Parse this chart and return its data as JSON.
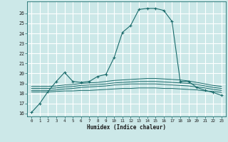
{
  "xlabel": "Humidex (Indice chaleur)",
  "bg_color": "#cce8e8",
  "grid_color": "#ffffff",
  "line_color": "#1a6b6b",
  "xlim": [
    -0.5,
    23.5
  ],
  "ylim": [
    15.7,
    27.2
  ],
  "yticks": [
    16,
    17,
    18,
    19,
    20,
    21,
    22,
    23,
    24,
    25,
    26
  ],
  "xticks": [
    0,
    1,
    2,
    3,
    4,
    5,
    6,
    7,
    8,
    9,
    10,
    11,
    12,
    13,
    14,
    15,
    16,
    17,
    18,
    19,
    20,
    21,
    22,
    23
  ],
  "series": [
    {
      "x": [
        0,
        1,
        2,
        3,
        4,
        5,
        6,
        7,
        8,
        9,
        10,
        11,
        12,
        13,
        14,
        15,
        16,
        17,
        18,
        19,
        20,
        21,
        22,
        23
      ],
      "y": [
        16.1,
        17.0,
        18.2,
        19.2,
        20.1,
        19.2,
        19.1,
        19.2,
        19.7,
        19.9,
        21.6,
        24.1,
        24.8,
        26.4,
        26.5,
        26.5,
        26.3,
        25.2,
        19.2,
        19.2,
        18.6,
        18.3,
        18.1,
        17.8
      ],
      "marker": true
    },
    {
      "x": [
        0,
        1,
        2,
        3,
        4,
        5,
        6,
        7,
        8,
        9,
        10,
        11,
        12,
        13,
        14,
        15,
        16,
        17,
        18,
        19,
        20,
        21,
        22,
        23
      ],
      "y": [
        18.15,
        18.15,
        18.15,
        18.2,
        18.25,
        18.25,
        18.3,
        18.3,
        18.35,
        18.4,
        18.45,
        18.5,
        18.5,
        18.55,
        18.55,
        18.55,
        18.5,
        18.5,
        18.45,
        18.4,
        18.35,
        18.25,
        18.2,
        18.1
      ],
      "marker": false
    },
    {
      "x": [
        0,
        1,
        2,
        3,
        4,
        5,
        6,
        7,
        8,
        9,
        10,
        11,
        12,
        13,
        14,
        15,
        16,
        17,
        18,
        19,
        20,
        21,
        22,
        23
      ],
      "y": [
        18.3,
        18.3,
        18.3,
        18.35,
        18.45,
        18.5,
        18.6,
        18.65,
        18.7,
        18.75,
        18.85,
        18.9,
        18.95,
        18.95,
        18.95,
        18.95,
        18.9,
        18.85,
        18.8,
        18.75,
        18.65,
        18.55,
        18.4,
        18.3
      ],
      "marker": false
    },
    {
      "x": [
        0,
        1,
        2,
        3,
        4,
        5,
        6,
        7,
        8,
        9,
        10,
        11,
        12,
        13,
        14,
        15,
        16,
        17,
        18,
        19,
        20,
        21,
        22,
        23
      ],
      "y": [
        18.5,
        18.5,
        18.5,
        18.55,
        18.65,
        18.7,
        18.8,
        18.85,
        18.9,
        18.95,
        19.05,
        19.1,
        19.15,
        19.2,
        19.2,
        19.2,
        19.15,
        19.1,
        19.05,
        19.0,
        18.9,
        18.75,
        18.6,
        18.5
      ],
      "marker": false
    },
    {
      "x": [
        0,
        1,
        2,
        3,
        4,
        5,
        6,
        7,
        8,
        9,
        10,
        11,
        12,
        13,
        14,
        15,
        16,
        17,
        18,
        19,
        20,
        21,
        22,
        23
      ],
      "y": [
        18.7,
        18.7,
        18.7,
        18.75,
        18.85,
        18.9,
        19.0,
        19.05,
        19.1,
        19.2,
        19.3,
        19.35,
        19.4,
        19.45,
        19.5,
        19.5,
        19.45,
        19.4,
        19.35,
        19.25,
        19.1,
        18.95,
        18.8,
        18.7
      ],
      "marker": false
    }
  ]
}
